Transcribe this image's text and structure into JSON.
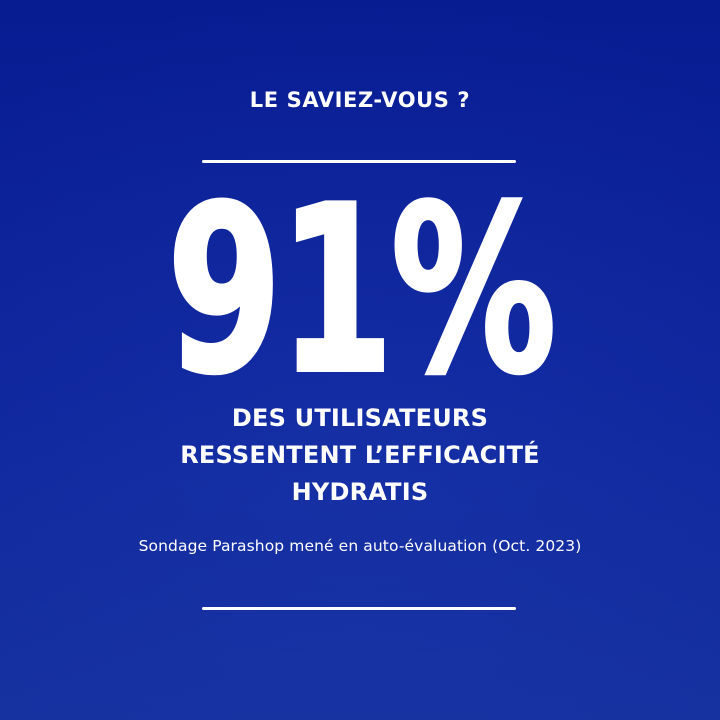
{
  "card": {
    "header": "LE SAVIEZ-VOUS ?",
    "stat_value": "91%",
    "description_lines": [
      "DES UTILISATEURS",
      "RESSENTENT L’EFFICACITÉ",
      "HYDRATIS"
    ],
    "source": "Sondage Parashop mené en auto-évaluation (Oct. 2023)",
    "brand": "HYDRATIS",
    "colors": {
      "background_top": "#081c92",
      "background_bottom": "#15309f",
      "text": "#ffffff"
    }
  }
}
